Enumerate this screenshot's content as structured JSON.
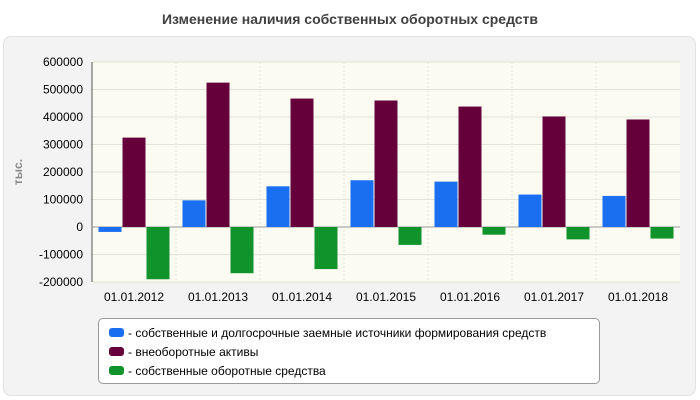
{
  "chart_data": {
    "type": "bar",
    "title": "Изменение наличия собственных оборотных средств",
    "ylabel": "тыс.",
    "xlabel": "",
    "ylim": [
      -200000,
      600000
    ],
    "yticks": [
      600000,
      500000,
      400000,
      300000,
      200000,
      100000,
      0,
      -100000,
      -200000
    ],
    "grid": true,
    "legend_position": "bottom",
    "categories": [
      "01.01.2012",
      "01.01.2013",
      "01.01.2014",
      "01.01.2015",
      "01.01.2016",
      "01.01.2017",
      "01.01.2018"
    ],
    "series": [
      {
        "name": "- собственные и долгосрочные заемные источники формирования средств",
        "color": "#1a6ff0",
        "values": [
          -18000,
          97000,
          148000,
          170000,
          165000,
          118000,
          113000
        ]
      },
      {
        "name": "- внеоборотные активы",
        "color": "#66003a",
        "values": [
          325000,
          525000,
          467000,
          460000,
          438000,
          402000,
          391000
        ]
      },
      {
        "name": "- собственные оборотные средства",
        "color": "#10932a",
        "values": [
          -190000,
          -168000,
          -153000,
          -65000,
          -28000,
          -45000,
          -42000
        ]
      }
    ]
  }
}
